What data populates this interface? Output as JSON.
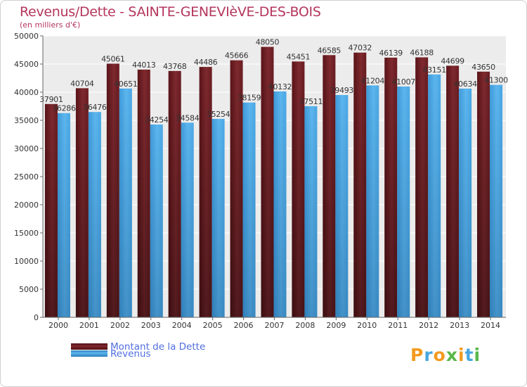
{
  "title": "Revenus/Dette - SAINTE-GENEVIèVE-DES-BOIS",
  "subtitle": "(en milliers d'€)",
  "logo": "Proxiti",
  "colors": {
    "dette": "#7f2a2f",
    "dette_shadow": "#4e0c10",
    "revenus": "#4ba9e6",
    "revenus_shadow": "#2d7dbd",
    "title": "#b4365d",
    "legend_text": "#4f6ee0"
  },
  "chart_data": {
    "type": "bar",
    "categories": [
      "2000",
      "2001",
      "2002",
      "2003",
      "2004",
      "2005",
      "2006",
      "2007",
      "2008",
      "2009",
      "2010",
      "2011",
      "2012",
      "2013",
      "2014"
    ],
    "series": [
      {
        "name": "Montant de la Dette",
        "values": [
          37901,
          40704,
          45061,
          44013,
          43768,
          44486,
          45666,
          48050,
          45451,
          46585,
          47032,
          46139,
          46188,
          44699,
          43650
        ]
      },
      {
        "name": "Revenus",
        "values": [
          36286,
          36476,
          40651,
          34254,
          34584,
          35254,
          38159,
          40132,
          37511,
          39493,
          41204,
          41007,
          43151,
          40634,
          41300
        ]
      }
    ],
    "yticks": [
      0,
      5000,
      10000,
      15000,
      20000,
      25000,
      30000,
      35000,
      40000,
      45000,
      50000
    ],
    "ylim": [
      0,
      50000
    ],
    "grid": true,
    "legend": "bottom-left"
  }
}
